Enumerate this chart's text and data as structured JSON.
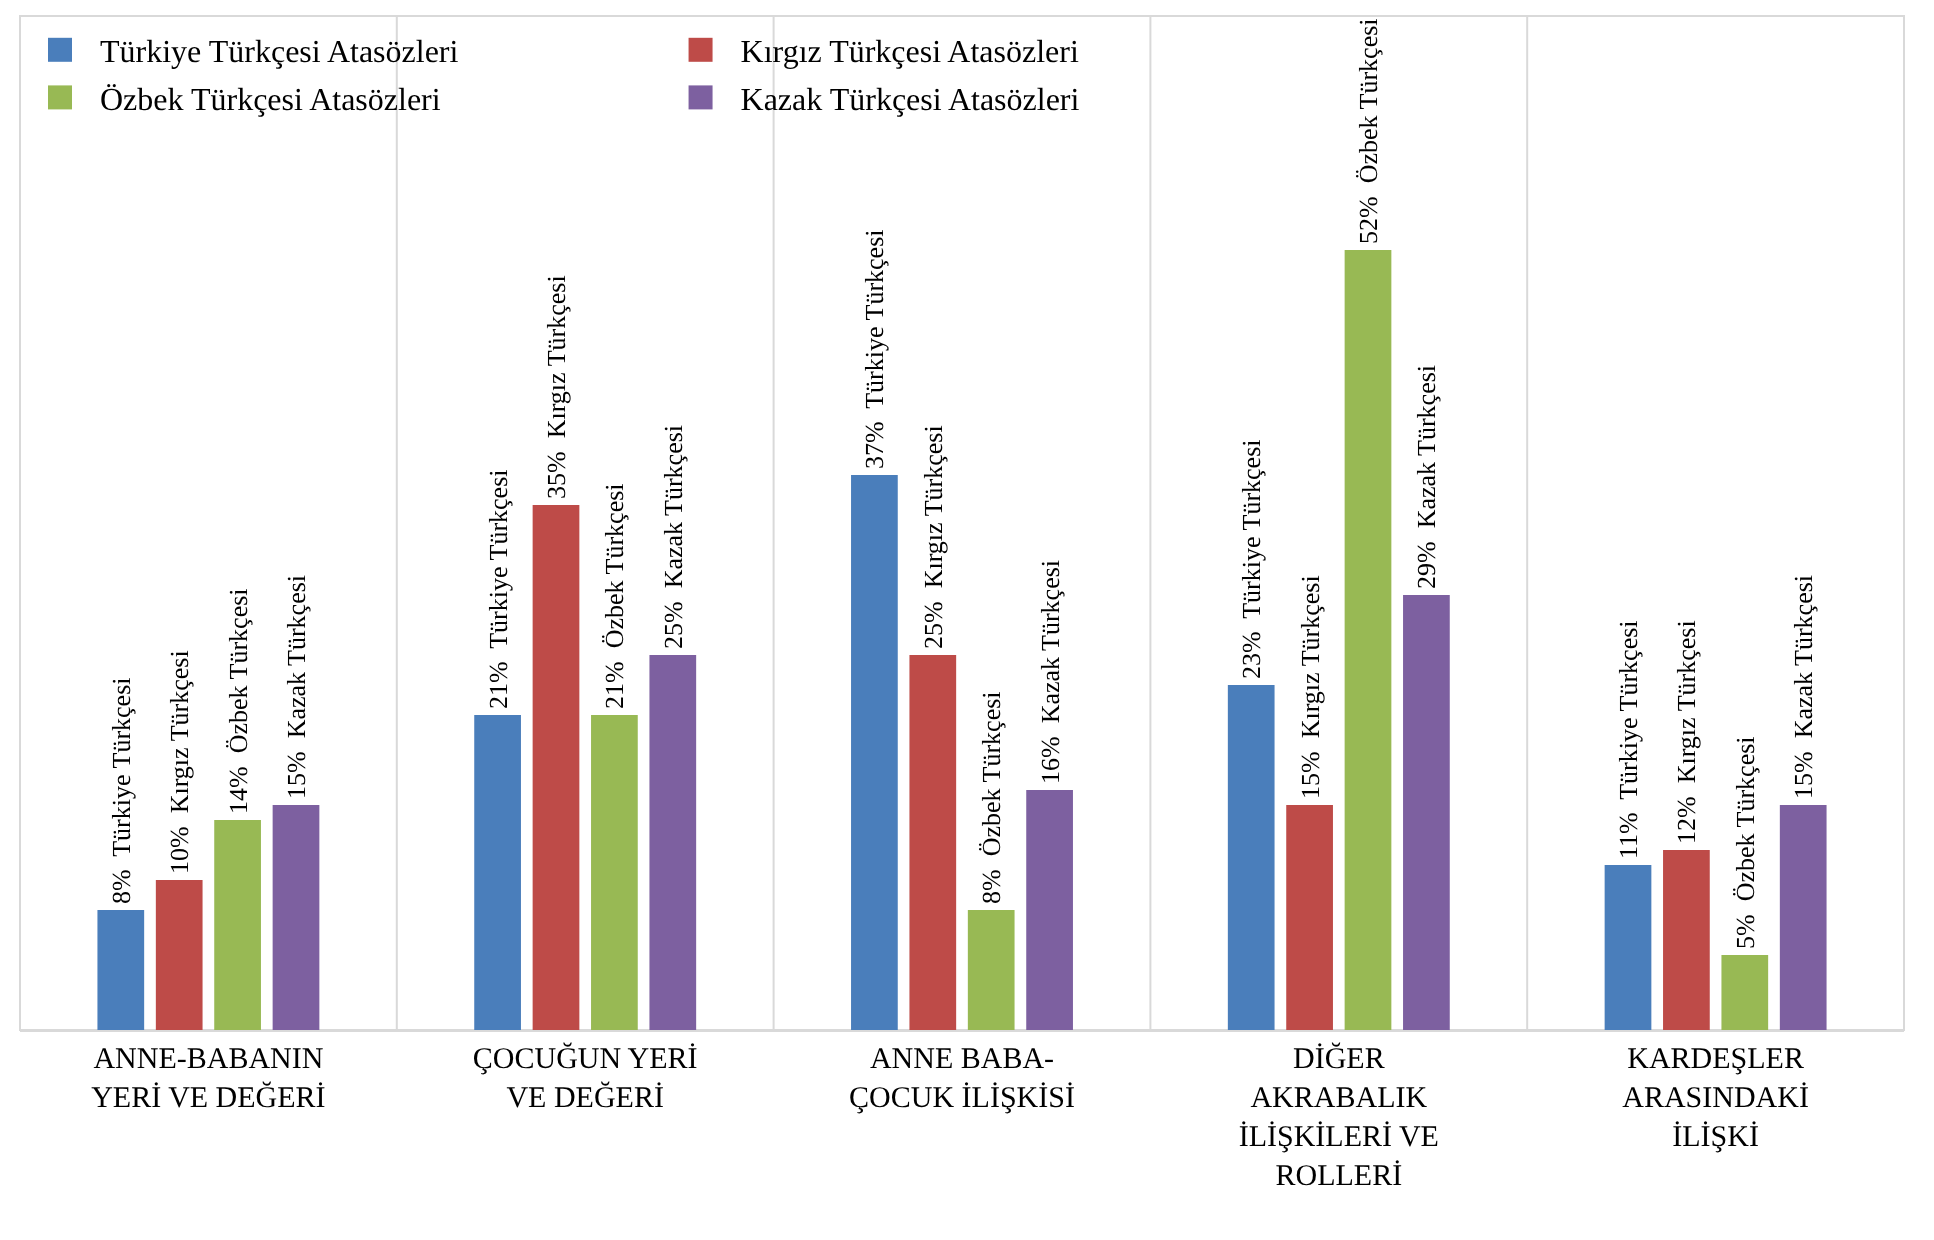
{
  "chart_data": {
    "type": "bar",
    "categories": [
      "ANNE-BABANIN\nYERİ VE DEĞERİ",
      "ÇOCUĞUN YERİ\nVE DEĞERİ",
      "ANNE BABA-\nÇOCUK İLİŞKİSİ",
      "DİĞER\nAKRABALIK\nİLİŞKİLERİ VE\nROLLERİ",
      "KARDEŞLER\nARASINDAKİ\nİLİŞKİ"
    ],
    "series": [
      {
        "name": "Türkiye Türkçesi Atasözleri",
        "color": "#4a7ebb",
        "values": [
          8,
          21,
          37,
          23,
          11
        ],
        "value_labels": [
          "8%  Türkiye Türkçesi",
          "21%  Türkiye Türkçesi",
          "37%  Türkiye Türkçesi",
          "23%  Türkiye Türkçesi",
          "11%  Türkiye Türkçesi"
        ]
      },
      {
        "name": "Kırgız Türkçesi Atasözleri",
        "color": "#be4b48",
        "values": [
          10,
          35,
          25,
          15,
          12
        ],
        "value_labels": [
          "10%  Kırgız Türkçesi",
          "35%  Kırgız Türkçesi",
          "25%  Kırgız Türkçesi",
          "15%  Kırgız Türkçesi",
          "12%  Kırgız Türkçesi"
        ]
      },
      {
        "name": "Özbek Türkçesi Atasözleri",
        "color": "#98b954",
        "values": [
          14,
          21,
          8,
          52,
          5
        ],
        "value_labels": [
          "14%  Özbek Türkçesi",
          "21%  Özbek Türkçesi",
          "8%  Özbek Türkçesi",
          "52%  Özbek Türkçesi",
          "5%  Özbek Türkçesi"
        ]
      },
      {
        "name": "Kazak Türkçesi Atasözleri",
        "color": "#7d60a0",
        "values": [
          15,
          25,
          16,
          29,
          15
        ],
        "value_labels": [
          "15%  Kazak Türkçesi",
          "25%  Kazak Türkçesi",
          "16%  Kazak Türkçesi",
          "29%  Kazak Türkçesi",
          "15%  Kazak Türkçesi"
        ]
      }
    ],
    "grid": "x",
    "legend": "top left"
  }
}
